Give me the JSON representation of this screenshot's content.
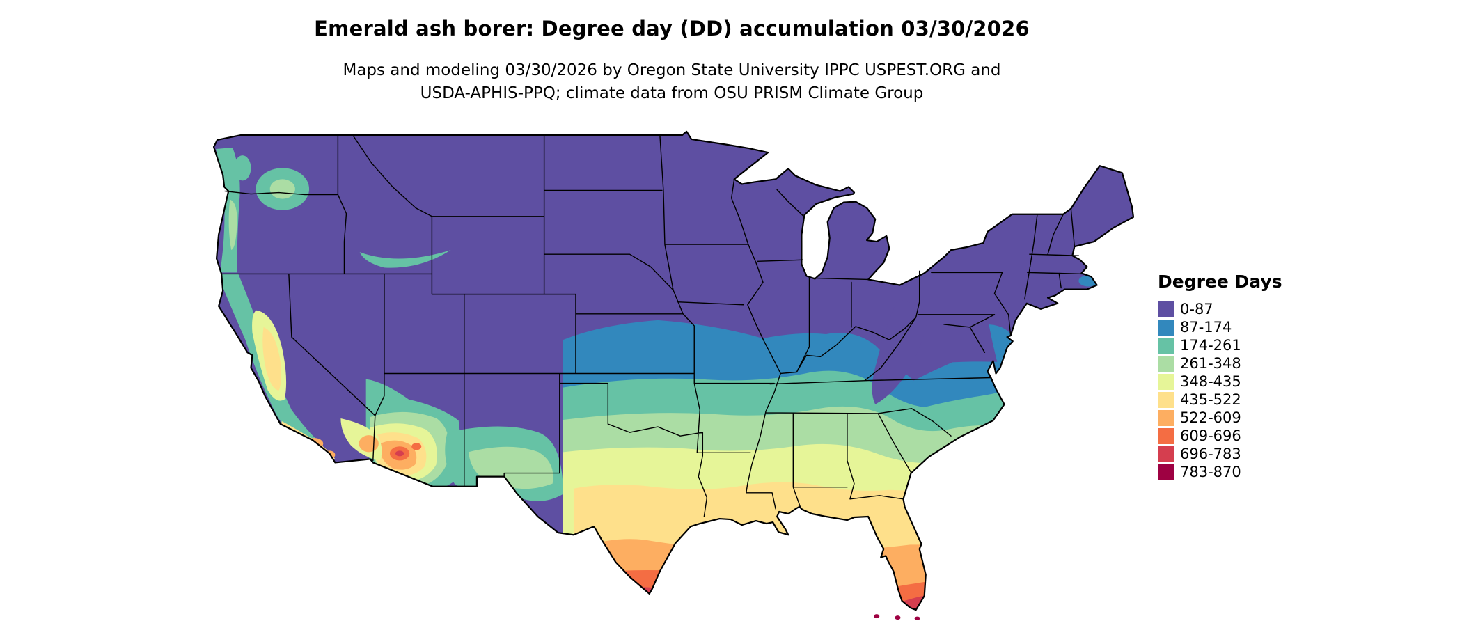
{
  "title": "Emerald ash borer: Degree day (DD) accumulation 03/30/2026",
  "subtitle_line1": "Maps and modeling 03/30/2026 by Oregon State University IPPC USPEST.ORG and",
  "subtitle_line2": "USDA-APHIS-PPQ; climate data from OSU PRISM Climate Group",
  "legend": {
    "title": "Degree Days",
    "items": [
      {
        "label": "0-87",
        "color": "#5e4fa2"
      },
      {
        "label": "87-174",
        "color": "#3288bd"
      },
      {
        "label": "174-261",
        "color": "#66c2a5"
      },
      {
        "label": "261-348",
        "color": "#abdda4"
      },
      {
        "label": "348-435",
        "color": "#e6f598"
      },
      {
        "label": "435-522",
        "color": "#fee08b"
      },
      {
        "label": "522-609",
        "color": "#fdae61"
      },
      {
        "label": "609-696",
        "color": "#f46d43"
      },
      {
        "label": "696-783",
        "color": "#d53e4f"
      },
      {
        "label": "783-870",
        "color": "#9e0142"
      }
    ]
  },
  "chart_data": {
    "type": "heatmap",
    "subtype": "choropleth-degree-day-map",
    "title": "Emerald ash borer: Degree day (DD) accumulation 03/30/2026",
    "legend_title": "Degree Days",
    "bins": [
      {
        "range": "0-87",
        "color": "#5e4fa2"
      },
      {
        "range": "87-174",
        "color": "#3288bd"
      },
      {
        "range": "174-261",
        "color": "#66c2a5"
      },
      {
        "range": "261-348",
        "color": "#abdda4"
      },
      {
        "range": "348-435",
        "color": "#e6f598"
      },
      {
        "range": "435-522",
        "color": "#fee08b"
      },
      {
        "range": "522-609",
        "color": "#fdae61"
      },
      {
        "range": "609-696",
        "color": "#f46d43"
      },
      {
        "range": "696-783",
        "color": "#d53e4f"
      },
      {
        "range": "783-870",
        "color": "#9e0142"
      }
    ],
    "legend_position": "right",
    "value_range": [
      0,
      870
    ],
    "pattern": "lowest accumulation (purple) across the north and Rockies, increasing southward to highest accumulation (red/dark red) in south Texas, southern Florida and the Arizona low desert"
  }
}
